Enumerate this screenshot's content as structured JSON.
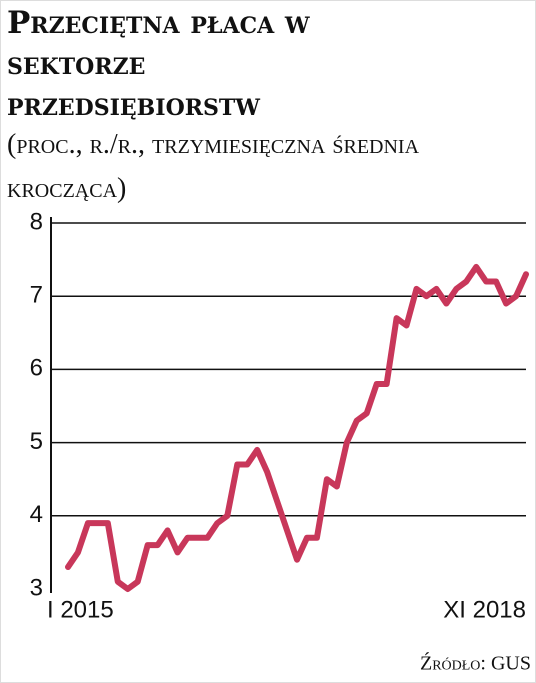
{
  "chart_data": {
    "type": "line",
    "title": "Przeciętna płaca w sektorze przedsiębiorstw",
    "subtitle": "(proc., r./r., trzymiesięczna średnia krocząca)",
    "source": "Źródło: GUS",
    "categories": [
      "I 2015",
      null,
      null,
      null,
      null,
      null,
      null,
      null,
      null,
      null,
      null,
      null,
      null,
      null,
      null,
      null,
      null,
      null,
      null,
      null,
      null,
      null,
      null,
      null,
      null,
      null,
      null,
      null,
      null,
      null,
      null,
      null,
      null,
      null,
      null,
      null,
      null,
      null,
      null,
      null,
      null,
      null,
      null,
      null,
      null,
      null,
      "XI 2018"
    ],
    "values": [
      3.3,
      3.5,
      3.9,
      3.9,
      3.9,
      3.1,
      3.0,
      3.1,
      3.6,
      3.6,
      3.8,
      3.5,
      3.7,
      3.7,
      3.7,
      3.9,
      4.0,
      4.7,
      4.7,
      4.9,
      4.6,
      4.2,
      3.8,
      3.4,
      3.7,
      3.7,
      4.5,
      4.4,
      5.0,
      5.3,
      5.4,
      5.8,
      5.8,
      6.7,
      6.6,
      7.1,
      7.0,
      7.1,
      6.9,
      7.1,
      7.2,
      7.4,
      7.2,
      7.2,
      6.9,
      7.0,
      7.3
    ],
    "color": "#c8375a",
    "ylim": [
      3,
      8
    ],
    "yticks": [
      3,
      4,
      5,
      6,
      7,
      8
    ],
    "grid": true
  }
}
